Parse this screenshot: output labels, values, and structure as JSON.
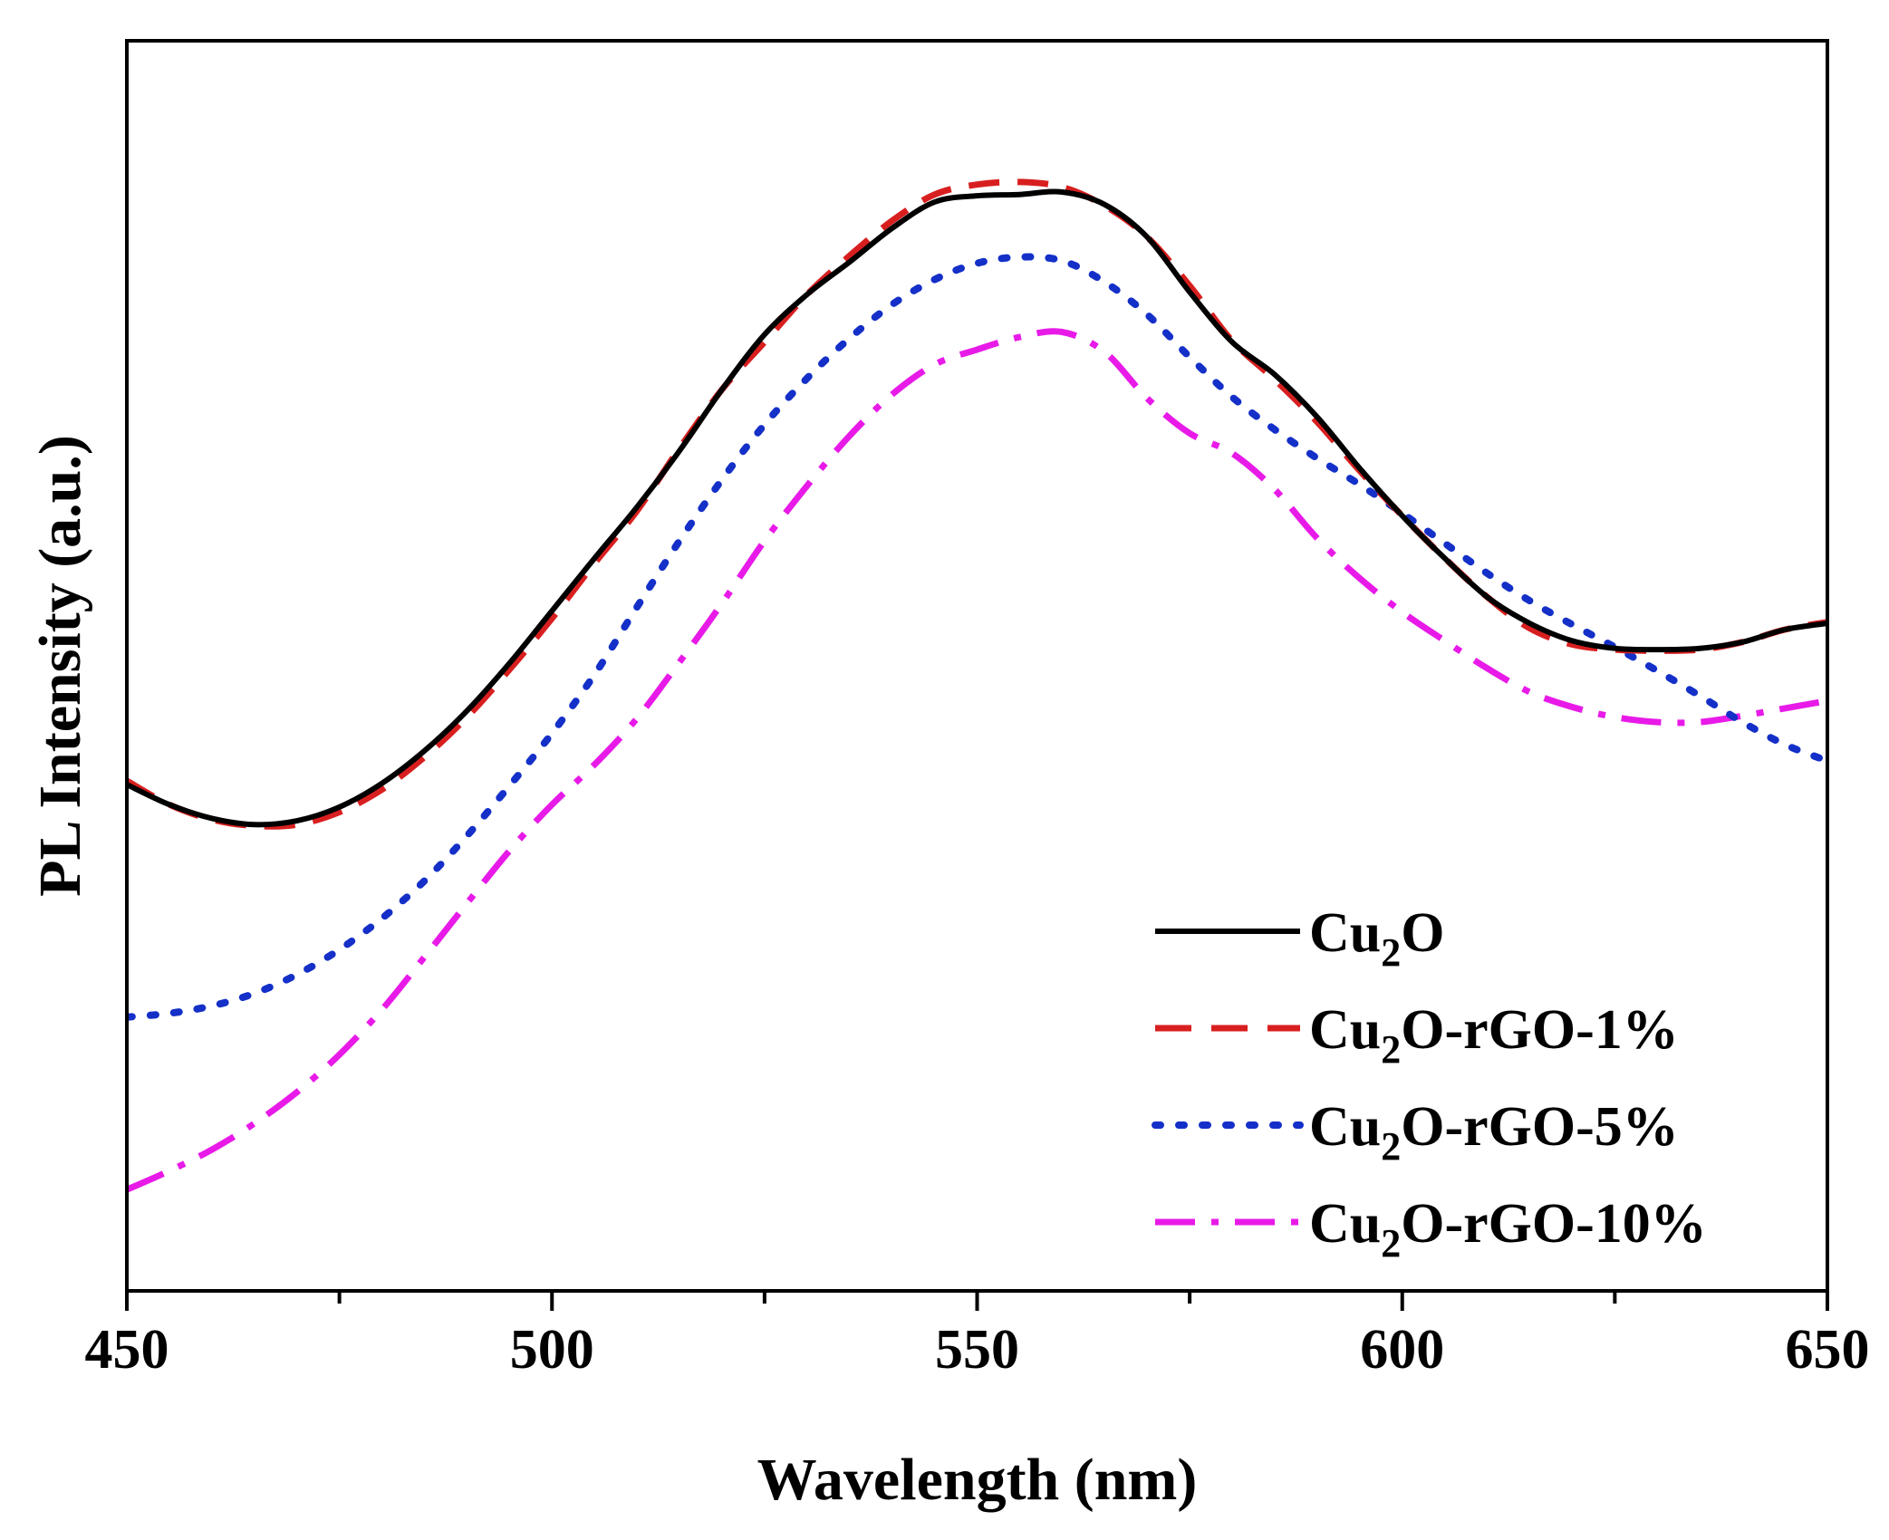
{
  "chart_data": {
    "type": "line",
    "xlabel": "Wavelength (nm)",
    "ylabel": "PL Intensity (a.u.)",
    "xlim": [
      450,
      650
    ],
    "ylim": [
      0,
      100
    ],
    "xticks": [
      "450",
      "500",
      "550",
      "600",
      "650"
    ],
    "y_tick_labels": false,
    "grid": false,
    "legend_position": "bottom-right",
    "series": [
      {
        "name_base": "Cu",
        "name_sub": "2",
        "name_rest": "O",
        "color": "#000000",
        "style": "solid",
        "x": [
          450,
          455,
          460,
          465,
          470,
          475,
          480,
          485,
          490,
          495,
          500,
          505,
          510,
          515,
          520,
          525,
          530,
          535,
          540,
          545,
          550,
          555,
          560,
          565,
          570,
          575,
          580,
          585,
          590,
          595,
          600,
          605,
          610,
          615,
          620,
          625,
          630,
          635,
          640,
          645,
          650
        ],
        "y": [
          40.5,
          38.9,
          37.8,
          37.3,
          37.6,
          38.7,
          40.6,
          43.2,
          46.4,
          50.2,
          54.4,
          58.6,
          62.7,
          67.2,
          72.1,
          76.5,
          79.7,
          82.3,
          85.0,
          87.1,
          87.6,
          87.7,
          87.9,
          86.9,
          84.3,
          79.9,
          75.9,
          73.3,
          69.9,
          65.8,
          62.0,
          58.6,
          55.5,
          53.4,
          52.0,
          51.4,
          51.3,
          51.4,
          51.9,
          52.9,
          53.4
        ]
      },
      {
        "name_base": "Cu",
        "name_sub": "2",
        "name_rest": "O-rGO-1%",
        "color": "#d81f1f",
        "style": "dashed",
        "x": [
          450,
          455,
          460,
          465,
          470,
          475,
          480,
          485,
          490,
          495,
          500,
          505,
          510,
          515,
          520,
          525,
          530,
          535,
          540,
          545,
          550,
          555,
          560,
          565,
          570,
          575,
          580,
          585,
          590,
          595,
          600,
          605,
          610,
          615,
          620,
          625,
          630,
          635,
          640,
          645,
          650
        ],
        "y": [
          40.8,
          38.9,
          37.7,
          37.2,
          37.3,
          38.3,
          40.1,
          42.7,
          45.9,
          49.7,
          53.8,
          58.2,
          62.4,
          67.4,
          72.1,
          75.9,
          79.7,
          82.8,
          85.6,
          87.7,
          88.5,
          88.7,
          88.3,
          86.8,
          84.3,
          80.4,
          76.0,
          72.9,
          69.5,
          65.6,
          62.0,
          58.6,
          55.5,
          53.0,
          51.7,
          51.3,
          51.2,
          51.3,
          51.9,
          52.9,
          53.5
        ]
      },
      {
        "name_base": "Cu",
        "name_sub": "2",
        "name_rest": "O-rGO-5%",
        "color": "#1430c8",
        "style": "dotted",
        "x": [
          450,
          455,
          460,
          465,
          470,
          475,
          480,
          485,
          490,
          495,
          500,
          505,
          510,
          515,
          520,
          525,
          530,
          535,
          540,
          545,
          550,
          555,
          560,
          565,
          570,
          575,
          580,
          585,
          590,
          595,
          600,
          605,
          610,
          615,
          620,
          625,
          630,
          635,
          640,
          645,
          650
        ],
        "y": [
          21.9,
          22.2,
          22.8,
          23.8,
          25.3,
          27.3,
          29.8,
          32.8,
          36.4,
          40.4,
          44.6,
          49.3,
          54.7,
          60.0,
          64.9,
          69.3,
          73.0,
          76.2,
          78.9,
          80.9,
          82.2,
          82.7,
          82.4,
          80.7,
          78.1,
          74.7,
          71.5,
          68.9,
          66.6,
          64.5,
          62.2,
          59.8,
          57.4,
          55.2,
          53.3,
          51.5,
          49.6,
          47.6,
          45.5,
          43.7,
          42.4
        ]
      },
      {
        "name_base": "Cu",
        "name_sub": "2",
        "name_rest": "O-rGO-10%",
        "color": "#e81ae8",
        "style": "dashdot",
        "x": [
          450,
          455,
          460,
          465,
          470,
          475,
          480,
          485,
          490,
          495,
          500,
          505,
          510,
          515,
          520,
          525,
          530,
          535,
          540,
          545,
          550,
          555,
          560,
          565,
          570,
          575,
          580,
          585,
          590,
          595,
          600,
          605,
          610,
          615,
          620,
          625,
          630,
          635,
          640,
          645,
          650
        ],
        "y": [
          8.1,
          9.6,
          11.3,
          13.4,
          15.9,
          18.9,
          22.5,
          26.7,
          31.0,
          35.2,
          38.9,
          42.1,
          45.8,
          50.3,
          55.0,
          60.0,
          64.4,
          68.4,
          71.7,
          74.1,
          75.3,
          76.3,
          76.7,
          75.1,
          71.4,
          68.6,
          67.0,
          64.1,
          60.2,
          57.0,
          54.3,
          52.0,
          49.8,
          47.9,
          46.7,
          45.9,
          45.5,
          45.5,
          46.0,
          46.6,
          47.2
        ]
      }
    ]
  }
}
